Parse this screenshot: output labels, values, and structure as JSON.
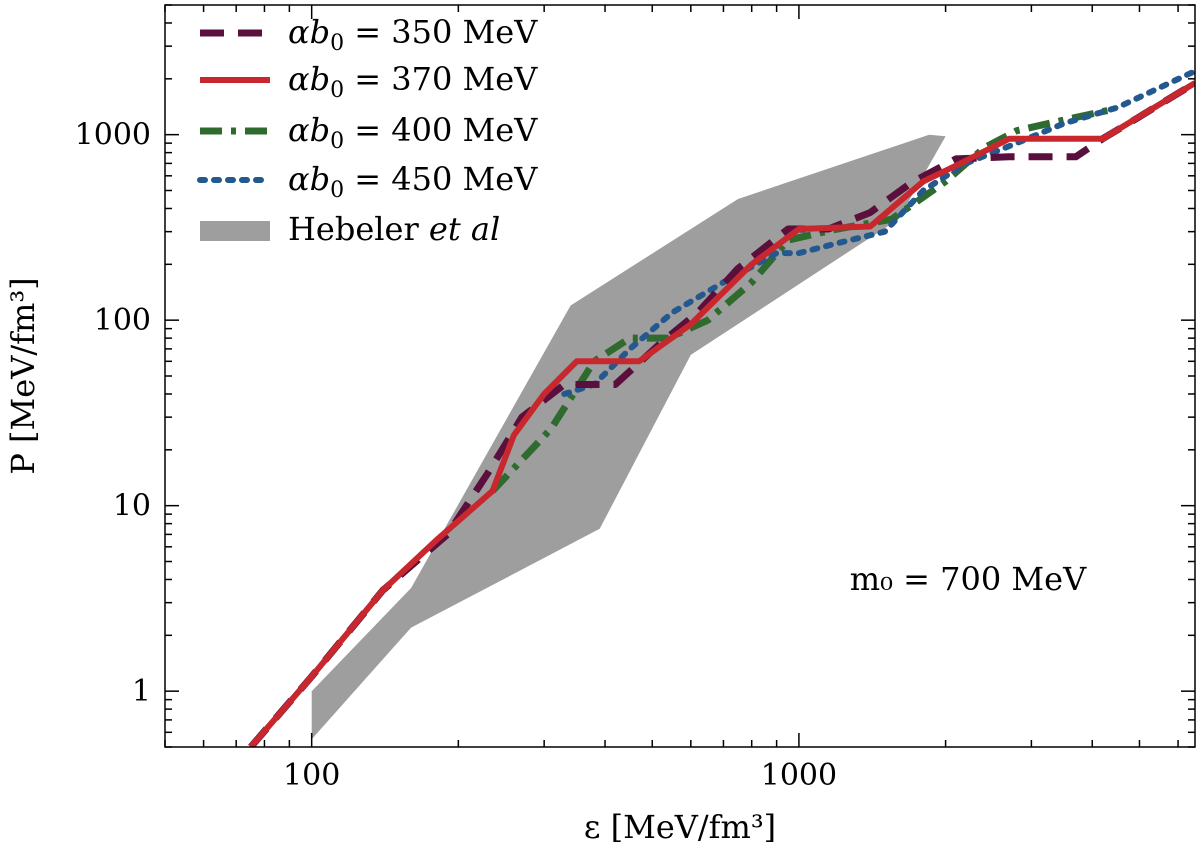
{
  "chart_data": {
    "type": "line",
    "xscale": "log",
    "yscale": "log",
    "xlim": [
      50,
      6500
    ],
    "ylim": [
      0.5,
      5000
    ],
    "xlabel": "ε [MeV/fm³]",
    "ylabel": "P [MeV/fm³]",
    "xticks": [
      {
        "value": 100,
        "label": "100"
      },
      {
        "value": 1000,
        "label": "1000"
      }
    ],
    "yticks": [
      {
        "value": 1,
        "label": "1"
      },
      {
        "value": 10,
        "label": "10"
      },
      {
        "value": 100,
        "label": "100"
      },
      {
        "value": 1000,
        "label": "1000"
      }
    ],
    "annotation": "m₀ = 700 MeV",
    "legend_position": "top-left",
    "series": [
      {
        "name": "αb₀ = 350 MeV",
        "color": "#5a0f3c",
        "style": "dashed",
        "x": [
          75,
          100,
          140,
          190,
          230,
          270,
          330,
          420,
          520,
          620,
          750,
          950,
          1150,
          1400,
          1700,
          2100,
          2700,
          3200,
          3700,
          4200,
          5000,
          6500
        ],
        "y": [
          0.5,
          1.2,
          3.5,
          7,
          15,
          30,
          45,
          45,
          75,
          110,
          190,
          310,
          310,
          380,
          550,
          740,
          760,
          760,
          760,
          950,
          1250,
          1900
        ]
      },
      {
        "name": "αb₀ = 370 MeV",
        "color": "#c8282d",
        "style": "solid",
        "x": [
          75,
          100,
          140,
          180,
          235,
          260,
          300,
          350,
          470,
          600,
          800,
          1000,
          1400,
          1800,
          2100,
          2700,
          4200,
          6500
        ],
        "y": [
          0.5,
          1.2,
          3.5,
          6.5,
          12,
          24,
          40,
          60,
          60,
          95,
          200,
          310,
          320,
          560,
          680,
          950,
          950,
          1900
        ]
      },
      {
        "name": "αb₀ = 400 MeV",
        "color": "#2f6b2f",
        "style": "dashdot",
        "x": [
          235,
          310,
          380,
          450,
          540,
          650,
          800,
          950,
          1200,
          1550,
          2000,
          2400,
          2800,
          3500,
          4300
        ],
        "y": [
          12,
          26,
          60,
          80,
          80,
          100,
          160,
          270,
          310,
          350,
          560,
          850,
          1050,
          1200,
          1350
        ]
      },
      {
        "name": "αb₀ = 450 MeV",
        "color": "#245990",
        "style": "dotted",
        "x": [
          330,
          380,
          450,
          550,
          700,
          900,
          1000,
          1200,
          1500,
          1800,
          2200,
          2800,
          3500,
          4500,
          6500
        ],
        "y": [
          40,
          45,
          70,
          110,
          160,
          230,
          230,
          260,
          300,
          500,
          700,
          900,
          1150,
          1400,
          2200
        ]
      }
    ],
    "band": {
      "name": "Hebeler et al",
      "color": "#9e9e9e",
      "upper": {
        "x": [
          100,
          160,
          340,
          750,
          1850,
          2000
        ],
        "y": [
          1.0,
          3.6,
          120,
          450,
          1000,
          980
        ]
      },
      "lower": {
        "x": [
          100,
          160,
          390,
          600,
          1600,
          2000
        ],
        "y": [
          0.55,
          2.2,
          7.5,
          65,
          350,
          980
        ]
      }
    }
  },
  "legend": [
    {
      "prefix": "αb",
      "sub": "0",
      "value": " = 350 MeV"
    },
    {
      "prefix": "αb",
      "sub": "0",
      "value": " = 370 MeV"
    },
    {
      "prefix": "αb",
      "sub": "0",
      "value": " = 400 MeV"
    },
    {
      "prefix": "αb",
      "sub": "0",
      "value": " = 450 MeV"
    },
    {
      "prefix": "Hebeler ",
      "sub": "",
      "value": "et al"
    }
  ]
}
